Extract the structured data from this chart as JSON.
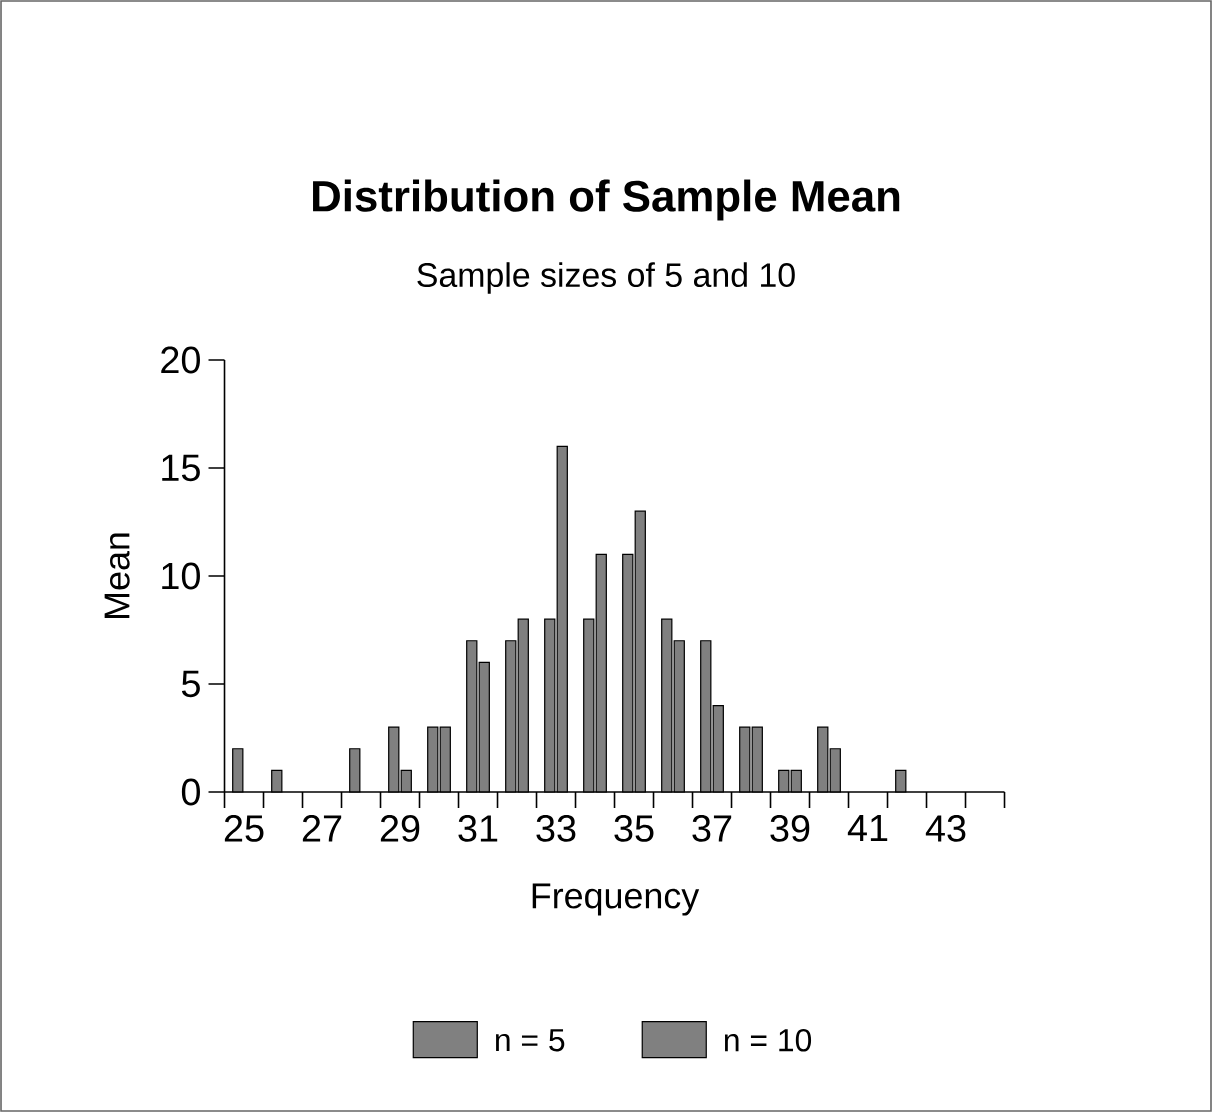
{
  "chart_data": {
    "type": "bar",
    "title": "Distribution of Sample Mean",
    "subtitle": "Sample sizes of 5 and 10",
    "xlabel": "Frequency",
    "ylabel": "Mean",
    "categories": [
      "25",
      null,
      "27",
      null,
      "29",
      null,
      "31",
      null,
      "33",
      null,
      "35",
      null,
      "37",
      null,
      "39",
      null,
      "41",
      null,
      "43",
      null
    ],
    "series": [
      {
        "name": "n = 5",
        "color": "#808080",
        "values": [
          2,
          1,
          0,
          2,
          3,
          3,
          7,
          7,
          8,
          8,
          11,
          8,
          7,
          3,
          1,
          3,
          0,
          1,
          0,
          0
        ]
      },
      {
        "name": "n = 10",
        "color": "#808080",
        "values": [
          0,
          0,
          0,
          0,
          1,
          3,
          6,
          8,
          16,
          11,
          13,
          7,
          4,
          3,
          1,
          2,
          0,
          0,
          0,
          0
        ]
      }
    ],
    "ylim": [
      0,
      20
    ],
    "yticks": [
      0,
      5,
      10,
      15,
      20
    ],
    "legend": "bottom"
  }
}
